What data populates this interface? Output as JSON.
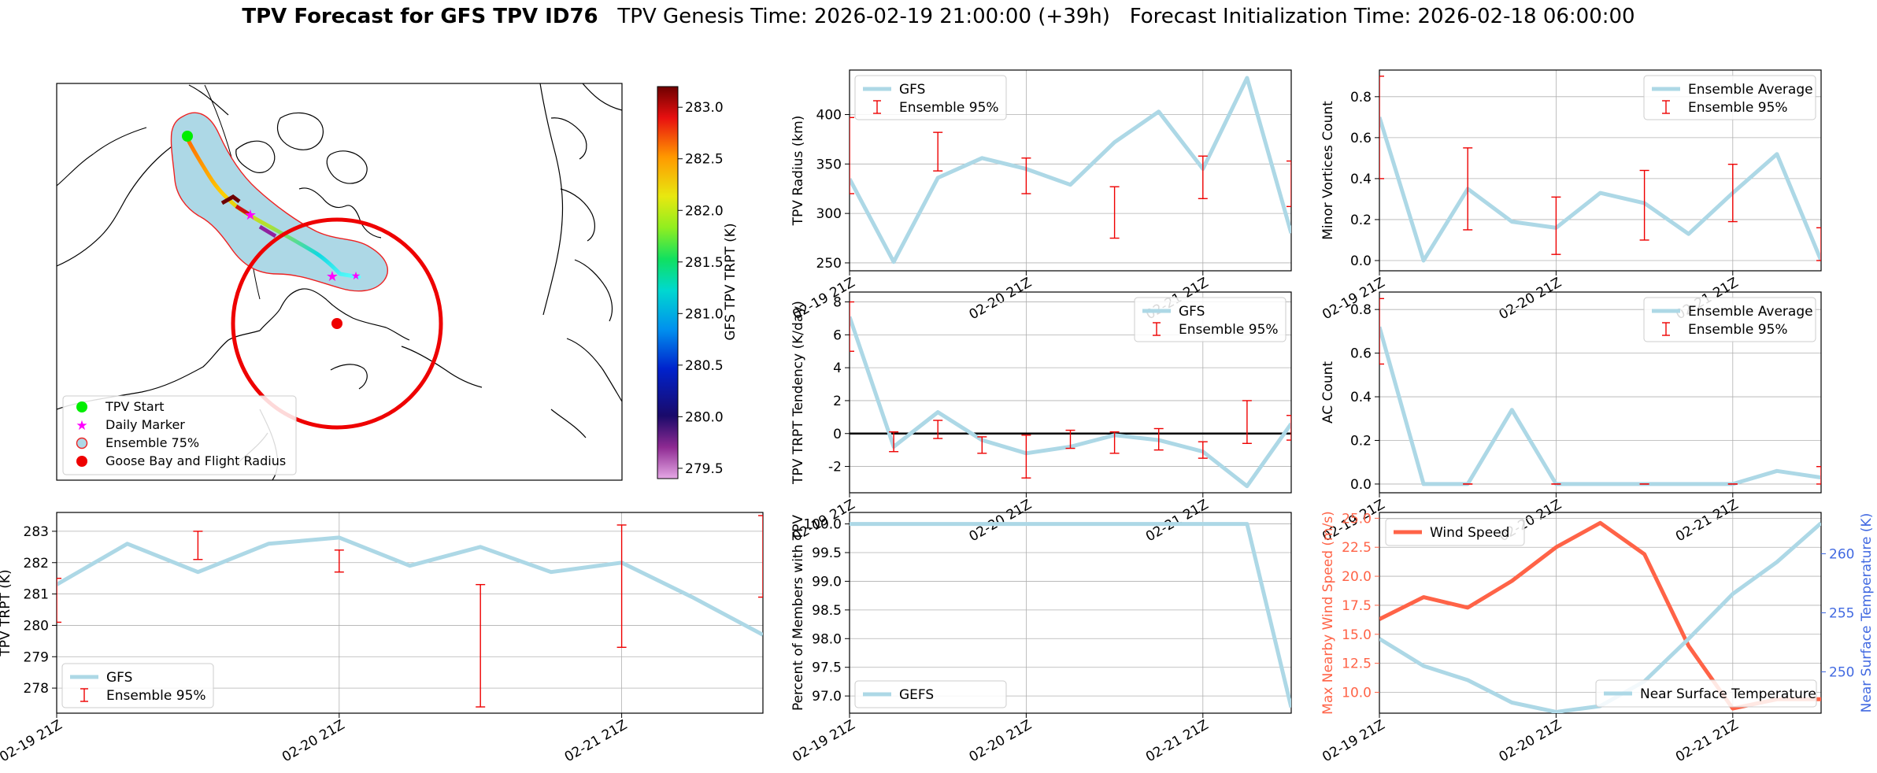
{
  "figure": {
    "title_bold": "TPV Forecast for GFS TPV ID76",
    "title_rest": "TPV Genesis Time: 2026-02-19 21:00:00 (+39h)   Forecast Initialization Time: 2026-02-18 06:00:00"
  },
  "map": {
    "colorbar_label": "GFS TPV TRPT (K)",
    "colorbar_ticks": [
      "283.0",
      "282.5",
      "282.0",
      "281.5",
      "281.0",
      "280.5",
      "280.0",
      "279.5"
    ],
    "colorbar_min": 279.4,
    "colorbar_max": 283.2,
    "legend": [
      "TPV Start",
      "Daily Marker",
      "Ensemble 75%",
      "Goose Bay and Flight Radius"
    ],
    "colors": {
      "start": "#00ee00",
      "marker": "#ff00ff",
      "goose": "#ee0000",
      "region": "#add8e6"
    }
  },
  "chart_data": [
    {
      "id": "radius",
      "type": "line",
      "ylabel": "TPV Radius (km)",
      "ylim": [
        242,
        445
      ],
      "yticks": [
        250,
        300,
        350,
        400
      ],
      "xlim": [
        0,
        10
      ],
      "xticks": [
        0,
        4,
        8
      ],
      "xticklabels": [
        "02-19 21Z",
        "02-20 21Z",
        "02-21 21Z"
      ],
      "legend": {
        "position": "upper-left",
        "items": [
          "GFS",
          "Ensemble 95%"
        ]
      },
      "line": {
        "name": "GFS",
        "x": [
          0,
          1,
          2,
          3,
          4,
          5,
          6,
          7,
          8,
          9,
          10
        ],
        "y": [
          335,
          251,
          336,
          356,
          345,
          329,
          372,
          403,
          345,
          437,
          280
        ]
      },
      "errorbars": [
        {
          "x": 0,
          "lo": 320,
          "hi": 397
        },
        {
          "x": 2,
          "lo": 343,
          "hi": 382
        },
        {
          "x": 4,
          "lo": 320,
          "hi": 356
        },
        {
          "x": 6,
          "lo": 275,
          "hi": 327
        },
        {
          "x": 8,
          "lo": 315,
          "hi": 358
        },
        {
          "x": 10,
          "lo": 307,
          "hi": 353
        }
      ]
    },
    {
      "id": "minor",
      "type": "line",
      "ylabel": "Minor Vortices Count",
      "ylim": [
        -0.05,
        0.93
      ],
      "yticks": [
        0.0,
        0.2,
        0.4,
        0.6,
        0.8
      ],
      "yticklabels": [
        "0.0",
        "0.2",
        "0.4",
        "0.6",
        "0.8"
      ],
      "xlim": [
        0,
        10
      ],
      "xticks": [
        0,
        4,
        8
      ],
      "xticklabels": [
        "02-19 21Z",
        "02-20 21Z",
        "02-21 21Z"
      ],
      "legend": {
        "position": "upper-right",
        "items": [
          "Ensemble Average",
          "Ensemble 95%"
        ]
      },
      "line": {
        "name": "Ensemble Average",
        "x": [
          0,
          1,
          2,
          3,
          4,
          5,
          6,
          7,
          8,
          9,
          10
        ],
        "y": [
          0.7,
          0.0,
          0.35,
          0.19,
          0.16,
          0.33,
          0.28,
          0.13,
          0.33,
          0.52,
          0.0
        ]
      },
      "errorbars": [
        {
          "x": 0,
          "lo": 0.4,
          "hi": 0.9
        },
        {
          "x": 2,
          "lo": 0.15,
          "hi": 0.55
        },
        {
          "x": 4,
          "lo": 0.03,
          "hi": 0.31
        },
        {
          "x": 6,
          "lo": 0.1,
          "hi": 0.44
        },
        {
          "x": 8,
          "lo": 0.19,
          "hi": 0.47
        },
        {
          "x": 10,
          "lo": 0.0,
          "hi": 0.16
        }
      ]
    },
    {
      "id": "tendency",
      "type": "line",
      "ylabel": "TPV TRPT Tendency (K/day)",
      "ylim": [
        -3.6,
        8.6
      ],
      "yticks": [
        -2,
        0,
        2,
        4,
        6,
        8
      ],
      "xlim": [
        0,
        10
      ],
      "xticks": [
        0,
        4,
        8
      ],
      "xticklabels": [
        "02-19 21Z",
        "02-20 21Z",
        "02-21 21Z"
      ],
      "zero_line": true,
      "legend": {
        "position": "upper-right",
        "items": [
          "GFS",
          "Ensemble 95%"
        ]
      },
      "line": {
        "name": "GFS",
        "x": [
          0,
          1,
          2,
          3,
          4,
          5,
          6,
          7,
          8,
          9,
          10
        ],
        "y": [
          7.1,
          -0.8,
          1.3,
          -0.4,
          -1.2,
          -0.8,
          -0.1,
          -0.4,
          -1.1,
          -3.2,
          0.6
        ]
      },
      "errorbars": [
        {
          "x": 0,
          "lo": 5.0,
          "hi": 8.0
        },
        {
          "x": 1,
          "lo": -1.1,
          "hi": 0.1
        },
        {
          "x": 2,
          "lo": -0.3,
          "hi": 0.8
        },
        {
          "x": 3,
          "lo": -1.2,
          "hi": -0.2
        },
        {
          "x": 4,
          "lo": -2.7,
          "hi": -0.1
        },
        {
          "x": 5,
          "lo": -0.9,
          "hi": 0.2
        },
        {
          "x": 6,
          "lo": -1.2,
          "hi": 0.1
        },
        {
          "x": 7,
          "lo": -1.0,
          "hi": 0.3
        },
        {
          "x": 8,
          "lo": -1.5,
          "hi": -0.5
        },
        {
          "x": 9,
          "lo": -0.6,
          "hi": 2.0
        },
        {
          "x": 10,
          "lo": -0.4,
          "hi": 1.1
        }
      ]
    },
    {
      "id": "ac",
      "type": "line",
      "ylabel": "AC Count",
      "ylim": [
        -0.04,
        0.88
      ],
      "yticks": [
        0.0,
        0.2,
        0.4,
        0.6,
        0.8
      ],
      "yticklabels": [
        "0.0",
        "0.2",
        "0.4",
        "0.6",
        "0.8"
      ],
      "xlim": [
        0,
        10
      ],
      "xticks": [
        0,
        4,
        8
      ],
      "xticklabels": [
        "02-19 21Z",
        "02-20 21Z",
        "02-21 21Z"
      ],
      "legend": {
        "position": "upper-right",
        "items": [
          "Ensemble Average",
          "Ensemble 95%"
        ]
      },
      "line": {
        "name": "Ensemble Average",
        "x": [
          0,
          1,
          2,
          3,
          4,
          5,
          6,
          7,
          8,
          9,
          10
        ],
        "y": [
          0.72,
          0.0,
          0.0,
          0.34,
          0.0,
          0.0,
          0.0,
          0.0,
          0.0,
          0.06,
          0.03
        ]
      },
      "errorbars": [
        {
          "x": 0,
          "lo": 0.55,
          "hi": 0.85
        },
        {
          "x": 2,
          "lo": 0.0,
          "hi": 0.0
        },
        {
          "x": 4,
          "lo": 0.0,
          "hi": 0.0
        },
        {
          "x": 6,
          "lo": 0.0,
          "hi": 0.0
        },
        {
          "x": 8,
          "lo": 0.0,
          "hi": 0.0
        },
        {
          "x": 10,
          "lo": 0.0,
          "hi": 0.08
        }
      ]
    },
    {
      "id": "trpt",
      "type": "line",
      "ylabel": "TPV TRPT (K)",
      "ylim": [
        277.2,
        283.6
      ],
      "yticks": [
        278,
        279,
        280,
        281,
        282,
        283
      ],
      "xlim": [
        0,
        10
      ],
      "xticks": [
        0,
        4,
        8
      ],
      "xticklabels": [
        "02-19 21Z",
        "02-20 21Z",
        "02-21 21Z"
      ],
      "legend": {
        "position": "lower-left",
        "items": [
          "GFS",
          "Ensemble 95%"
        ]
      },
      "line": {
        "name": "GFS",
        "x": [
          0,
          1,
          2,
          3,
          4,
          5,
          6,
          7,
          8,
          9,
          10
        ],
        "y": [
          281.3,
          282.6,
          281.7,
          282.6,
          282.8,
          281.9,
          282.5,
          281.7,
          282.0,
          280.9,
          279.7
        ]
      },
      "errorbars": [
        {
          "x": 0,
          "lo": 280.1,
          "hi": 281.5
        },
        {
          "x": 2,
          "lo": 282.1,
          "hi": 283.0
        },
        {
          "x": 4,
          "lo": 281.7,
          "hi": 282.4
        },
        {
          "x": 6,
          "lo": 277.4,
          "hi": 281.3
        },
        {
          "x": 8,
          "lo": 279.3,
          "hi": 283.2
        },
        {
          "x": 10,
          "lo": 280.9,
          "hi": 283.5
        }
      ]
    },
    {
      "id": "percent",
      "type": "line",
      "ylabel": "Percent of Members with TPV",
      "ylim": [
        96.7,
        100.2
      ],
      "yticks": [
        97.0,
        97.5,
        98.0,
        98.5,
        99.0,
        99.5,
        100.0
      ],
      "yticklabels": [
        "97.0",
        "97.5",
        "98.0",
        "98.5",
        "99.0",
        "99.5",
        "100.0"
      ],
      "xlim": [
        0,
        10
      ],
      "xticks": [
        0,
        4,
        8
      ],
      "xticklabels": [
        "02-19 21Z",
        "02-20 21Z",
        "02-21 21Z"
      ],
      "legend": {
        "position": "lower-left",
        "items": [
          "GEFS"
        ]
      },
      "line": {
        "name": "GEFS",
        "x": [
          0,
          1,
          2,
          3,
          4,
          5,
          6,
          7,
          8,
          9,
          10
        ],
        "y": [
          100,
          100,
          100,
          100,
          100,
          100,
          100,
          100,
          100,
          100,
          96.8
        ]
      },
      "errorbars": []
    },
    {
      "id": "wind",
      "type": "line",
      "ylabel": "Max Nearby Wind Speed (m/s)",
      "ylim": [
        8.2,
        25.5
      ],
      "yticks": [
        10.0,
        12.5,
        15.0,
        17.5,
        20.0,
        22.5,
        25.0
      ],
      "yticklabels": [
        "10.0",
        "12.5",
        "15.0",
        "17.5",
        "20.0",
        "22.5",
        "25.0"
      ],
      "y2label": "Near Surface Temperature (K)",
      "y2lim": [
        246.5,
        263.5
      ],
      "y2ticks": [
        250,
        255,
        260
      ],
      "xlim": [
        0,
        10
      ],
      "xticks": [
        0,
        4,
        8
      ],
      "xticklabels": [
        "02-19 21Z",
        "02-20 21Z",
        "02-21 21Z"
      ],
      "left_color": "#ff6347",
      "right_color": "#4169e1",
      "legend_left": "Wind Speed",
      "legend_right": "Near Surface Temperature",
      "series": [
        {
          "name": "Wind Speed",
          "axis": "left",
          "x": [
            0,
            1,
            2,
            3,
            4,
            5,
            6,
            7,
            8,
            9,
            10
          ],
          "y": [
            16.3,
            18.2,
            17.3,
            19.6,
            22.5,
            24.6,
            21.9,
            14.0,
            8.6,
            9.4,
            9.4
          ]
        },
        {
          "name": "Near Surface Temperature",
          "axis": "right",
          "x": [
            0,
            1,
            2,
            3,
            4,
            5,
            6,
            7,
            8,
            9,
            10
          ],
          "y": [
            252.8,
            250.5,
            249.3,
            247.4,
            246.6,
            247.1,
            249.2,
            252.8,
            256.6,
            259.3,
            262.6
          ]
        }
      ]
    }
  ]
}
